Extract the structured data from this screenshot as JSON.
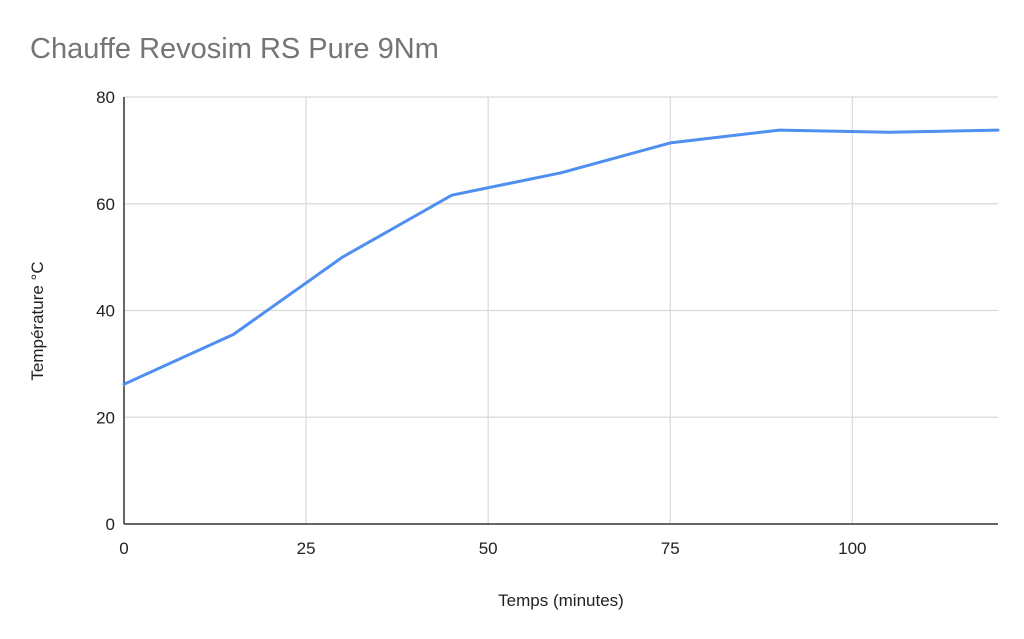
{
  "chart_data": {
    "type": "line",
    "title": "Chauffe Revosim RS Pure 9Nm",
    "xlabel": "Temps (minutes)",
    "ylabel": "Température °C",
    "xlim": [
      0,
      120
    ],
    "ylim": [
      0,
      80
    ],
    "x_ticks": [
      "0",
      "25",
      "50",
      "75",
      "100"
    ],
    "x_tick_values": [
      0,
      25,
      50,
      75,
      100
    ],
    "y_ticks": [
      "0",
      "20",
      "40",
      "60",
      "80"
    ],
    "y_tick_values": [
      0,
      20,
      40,
      60,
      80
    ],
    "grid": true,
    "legend": "none",
    "series": [
      {
        "color": "#4f8ff0",
        "x": [
          0,
          15,
          30,
          45,
          60,
          75,
          90,
          105,
          120
        ],
        "y": [
          26.2,
          35.5,
          50,
          61.6,
          65.8,
          71.4,
          73.8,
          73.4,
          73.8
        ]
      }
    ]
  }
}
